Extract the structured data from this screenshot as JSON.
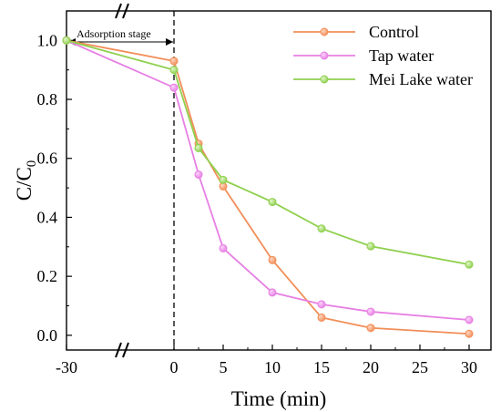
{
  "chart_data": {
    "type": "line",
    "title": "",
    "xlabel": "Time (min)",
    "ylabel": "C/C",
    "ylabel_subscript": "0",
    "x_ticks": [
      -30,
      0,
      5,
      10,
      15,
      20,
      25,
      30
    ],
    "y_ticks": [
      0.0,
      0.2,
      0.4,
      0.6,
      0.8,
      1.0
    ],
    "x_tick_labels": [
      "-30",
      "0",
      "5",
      "10",
      "15",
      "20",
      "25",
      "30"
    ],
    "y_tick_labels": [
      "0.0",
      "0.2",
      "0.4",
      "0.6",
      "0.8",
      "1.0"
    ],
    "ylim": [
      -0.05,
      1.1
    ],
    "axis_break": "between -30 and 0",
    "annotation": {
      "label": "Adsorption stage",
      "from_x": -30,
      "to_x": 0,
      "divider_x": 0
    },
    "legend_position": "top-right",
    "grid": false,
    "series": [
      {
        "name": "Control",
        "color": "#f28e58",
        "x": [
          -30,
          0,
          2.5,
          5,
          10,
          15,
          20,
          30
        ],
        "values": [
          1.0,
          0.93,
          0.65,
          0.505,
          0.255,
          0.06,
          0.025,
          0.005
        ]
      },
      {
        "name": "Tap water",
        "color": "#e77fe3",
        "x": [
          -30,
          0,
          2.5,
          5,
          10,
          15,
          20,
          30
        ],
        "values": [
          1.0,
          0.84,
          0.545,
          0.295,
          0.145,
          0.105,
          0.08,
          0.052
        ]
      },
      {
        "name": "Mei Lake water",
        "color": "#8fd04f",
        "x": [
          -30,
          0,
          2.5,
          5,
          10,
          15,
          20,
          30
        ],
        "values": [
          1.0,
          0.9,
          0.635,
          0.527,
          0.452,
          0.362,
          0.302,
          0.24
        ]
      }
    ]
  }
}
